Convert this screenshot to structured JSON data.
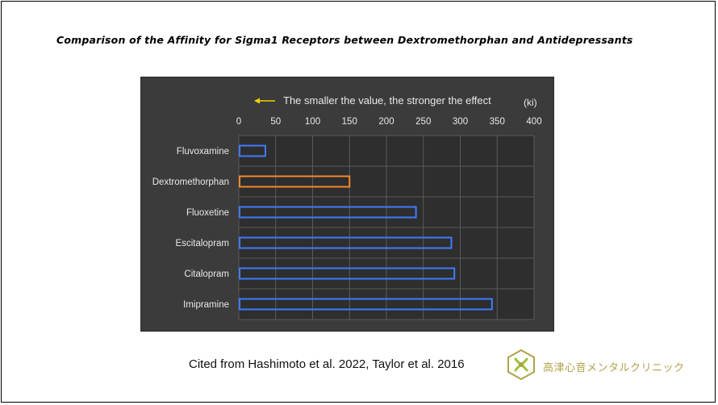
{
  "title": "Comparison of the Affinity for Sigma1 Receptors between Dextromethorphan and Antidepressants",
  "citation": "Cited from Hashimoto et al. 2022, Taylor et al. 2016",
  "logo": {
    "text": "高津心音メンタルクリニック",
    "color": "#b0a24a",
    "icon": "clinic-logo-icon"
  },
  "colors": {
    "panel": "#3b3b3b",
    "plot": "#2e2e2e",
    "grid": "#5a5a5a",
    "bar_default": "#3f7bff",
    "bar_highlight": "#f0882f",
    "arrow": "#f2d200",
    "text": "#e8e8e8"
  },
  "chart_data": {
    "type": "bar",
    "orientation": "horizontal",
    "annotation": "The smaller the value, the stronger the effect",
    "unit": "(ki)",
    "categories": [
      "Fluvoxamine",
      "Dextromethorphan",
      "Fluoxetine",
      "Escitalopram",
      "Citalopram",
      "Imipramine"
    ],
    "values": [
      36,
      150,
      240,
      288,
      292,
      343
    ],
    "highlight": "Dextromethorphan",
    "xlim": [
      0,
      400
    ],
    "xticks": [
      0,
      50,
      100,
      150,
      200,
      250,
      300,
      350,
      400
    ],
    "xaxis_position": "top",
    "grid": true
  }
}
